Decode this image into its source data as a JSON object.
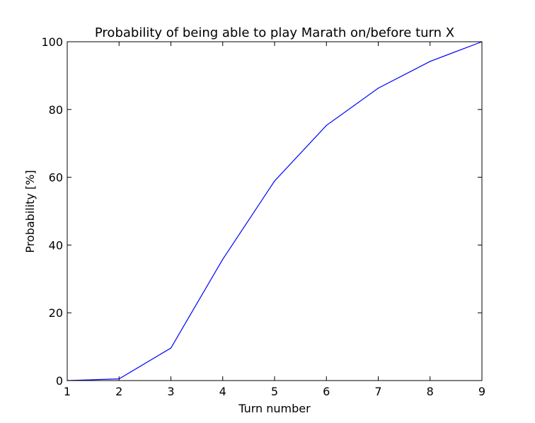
{
  "chart_data": {
    "type": "line",
    "title": "Probability of being able to play Marath on/before turn X",
    "xlabel": "Turn number",
    "ylabel": "Probability [%]",
    "xlim": [
      1,
      9
    ],
    "ylim": [
      0,
      100
    ],
    "xticks": [
      "1",
      "2",
      "3",
      "4",
      "5",
      "6",
      "7",
      "8",
      "9"
    ],
    "yticks": [
      "0",
      "20",
      "40",
      "60",
      "80",
      "100"
    ],
    "grid": false,
    "series": [
      {
        "color": "#0000ff",
        "x": [
          1,
          2,
          3,
          4,
          5,
          6,
          7,
          8,
          9
        ],
        "y": [
          0,
          0.5,
          9.6,
          35.8,
          58.9,
          75.3,
          86.3,
          94.2,
          100
        ]
      }
    ]
  }
}
